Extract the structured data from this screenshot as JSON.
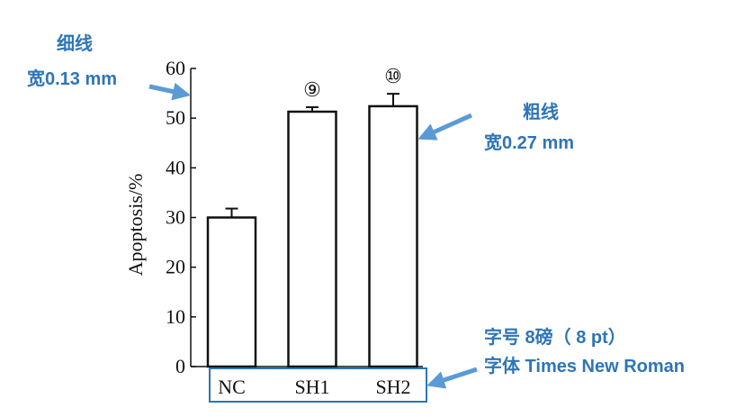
{
  "chart_data": {
    "type": "bar",
    "ylabel": "Apoptosis/%",
    "categories": [
      "NC",
      "SH1",
      "SH2"
    ],
    "values": [
      30,
      51.3,
      52.4
    ],
    "errors": [
      1.8,
      0.9,
      2.5
    ],
    "bar_labels": [
      null,
      "⑨",
      "⑩"
    ],
    "color": "#ffffff",
    "ylim": [
      0,
      60
    ],
    "yticks": [
      0,
      10,
      20,
      30,
      40,
      50,
      60
    ]
  },
  "annotations": [
    {
      "lines": [
        "细线",
        "宽0.13 mm"
      ]
    },
    {
      "lines": [
        "粗线",
        "宽0.27 mm"
      ]
    },
    {
      "lines": [
        "字号 8磅（ 8 pt）",
        "字体 Times New Roman"
      ]
    }
  ]
}
